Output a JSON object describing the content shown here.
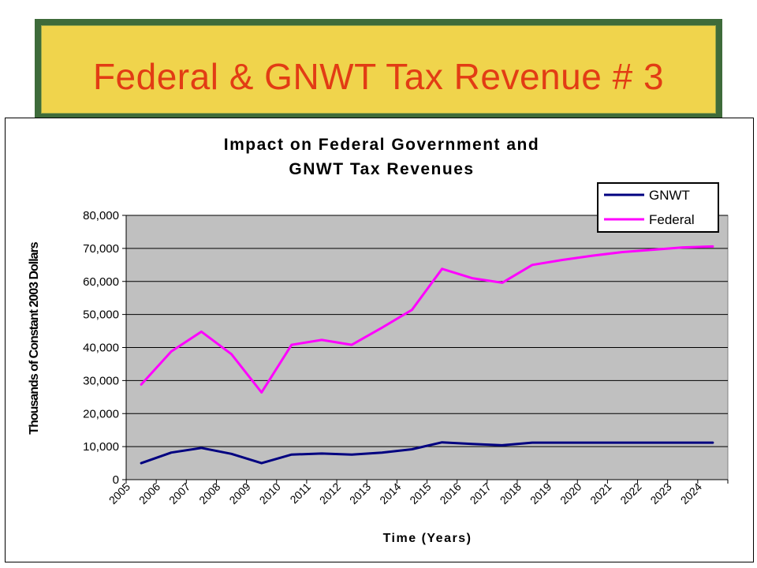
{
  "slide": {
    "title": "Federal & GNWT Tax Revenue # 3"
  },
  "chart_data": {
    "type": "line",
    "title_lines": [
      "Impact on Federal Government and",
      "GNWT Tax Revenues"
    ],
    "xlabel": "Time (Years)",
    "ylabel": "Thousands of Constant 2003 Dollars",
    "x_tick_labels": [
      "2005",
      "2006",
      "2007",
      "2008",
      "2009",
      "2010",
      "2011",
      "2012",
      "2013",
      "2014",
      "2015",
      "2016",
      "2017",
      "2018",
      "2019",
      "2020",
      "2021",
      "2022",
      "2023",
      "2024"
    ],
    "y_tick_labels": [
      "0",
      "10,000",
      "20,000",
      "30,000",
      "40,000",
      "50,000",
      "60,000",
      "70,000",
      "80,000"
    ],
    "ylim": [
      0,
      80000
    ],
    "y_step": 10000,
    "grid": "horizontal",
    "legend_position": "top-right",
    "plot_background": "#c0c0c0",
    "series": [
      {
        "name": "GNWT",
        "color": "#000080",
        "values": [
          5000,
          8200,
          9600,
          7800,
          5000,
          7600,
          7900,
          7600,
          8200,
          9200,
          11300,
          10800,
          10400,
          11200,
          11200,
          11200,
          11200,
          11200,
          11200,
          11200
        ]
      },
      {
        "name": "Federal",
        "color": "#ff00ff",
        "values": [
          28800,
          38800,
          44800,
          38000,
          26400,
          40800,
          42300,
          40800,
          46000,
          51400,
          63800,
          61000,
          59600,
          65000,
          66500,
          67800,
          68900,
          69600,
          70300,
          70600
        ]
      }
    ]
  }
}
